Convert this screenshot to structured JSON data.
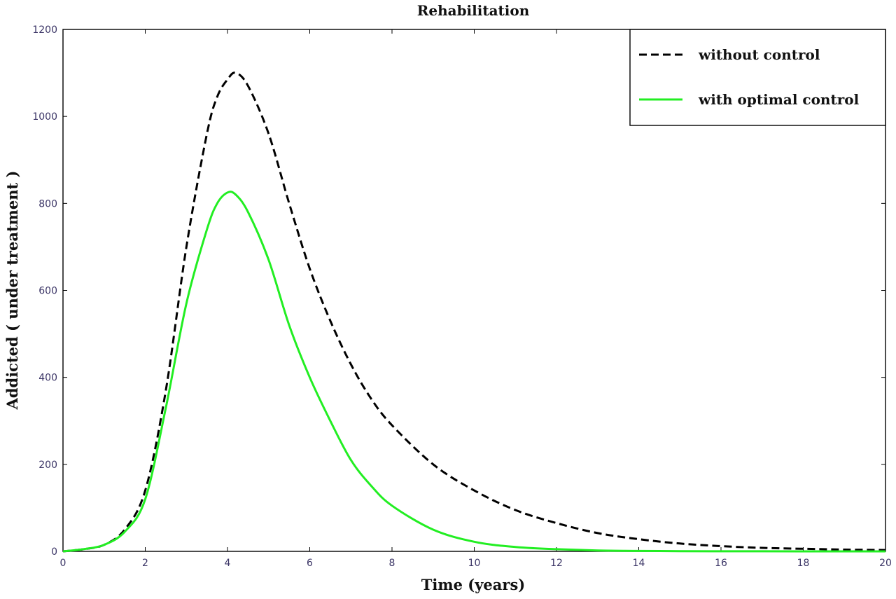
{
  "chart_data": {
    "type": "line",
    "title": "Rehabilitation",
    "xlabel": "Time (years)",
    "ylabel": "Addicted ( under treatment )",
    "xlim": [
      0,
      20
    ],
    "ylim": [
      0,
      1200
    ],
    "x_ticks": [
      0,
      2,
      4,
      6,
      8,
      10,
      12,
      14,
      16,
      18,
      20
    ],
    "y_ticks": [
      0,
      200,
      400,
      600,
      800,
      1000,
      1200
    ],
    "grid": false,
    "legend_position": "top-right",
    "series": [
      {
        "name": "without control",
        "color": "#000000",
        "style": "dashed",
        "x": [
          0,
          0.5,
          1.0,
          1.5,
          2.0,
          2.5,
          3.0,
          3.5,
          3.75,
          4.0,
          4.2,
          4.5,
          5.0,
          5.5,
          6.0,
          6.5,
          7.0,
          7.5,
          8.0,
          9.0,
          10.0,
          11.0,
          12.0,
          13.0,
          14.0,
          15.0,
          16.0,
          17.0,
          18.0,
          19.0,
          20.0
        ],
        "y": [
          0,
          5,
          15,
          50,
          140,
          370,
          700,
          960,
          1045,
          1085,
          1100,
          1070,
          960,
          800,
          650,
          530,
          430,
          350,
          290,
          200,
          140,
          95,
          65,
          42,
          28,
          18,
          12,
          8,
          6,
          4,
          3
        ]
      },
      {
        "name": "with optimal control",
        "color": "#22ee22",
        "style": "solid",
        "x": [
          0,
          0.5,
          1.0,
          1.5,
          2.0,
          2.5,
          3.0,
          3.5,
          3.75,
          4.0,
          4.2,
          4.5,
          5.0,
          5.5,
          6.0,
          6.5,
          7.0,
          7.5,
          8.0,
          9.0,
          10.0,
          11.0,
          12.0,
          13.0,
          14.0,
          15.0,
          16.0,
          17.0,
          18.0,
          19.0,
          20.0
        ],
        "y": [
          0,
          5,
          15,
          45,
          120,
          330,
          570,
          740,
          800,
          825,
          820,
          780,
          670,
          520,
          400,
          300,
          210,
          150,
          105,
          50,
          22,
          10,
          5,
          2,
          1,
          0.5,
          0.2,
          0.1,
          0,
          0,
          0
        ]
      }
    ]
  }
}
